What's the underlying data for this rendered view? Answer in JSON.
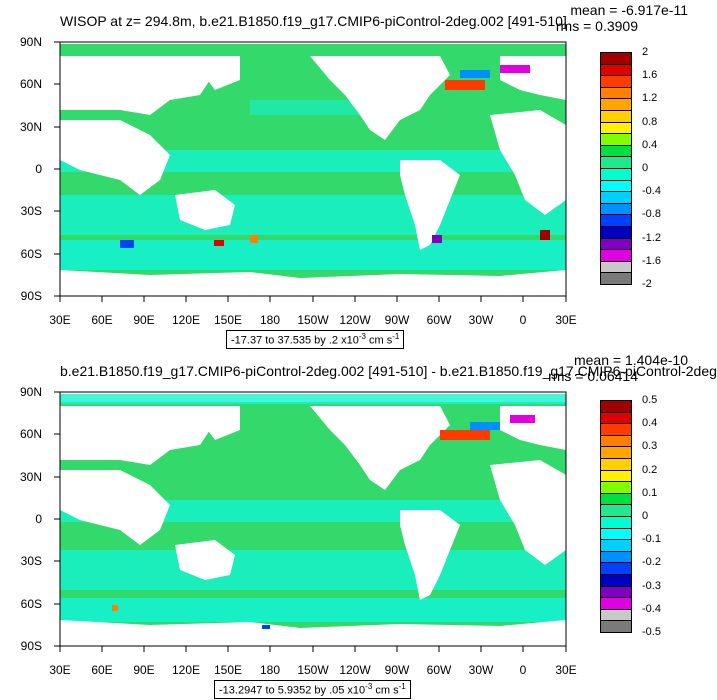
{
  "panels": [
    {
      "title": "WISOP at z= 294.8m, b.e21.B1850.f19_g17.CMIP6-piControl-2deg.002 [491-510]",
      "mean": "mean = -6.917e-11",
      "rms": "rms = 0.3909",
      "range_text": "-17.37 to 37.535 by .2 x10",
      "range_exp": "-3",
      "range_unit": " cm s",
      "range_unit_exp": "-1",
      "colorbar_labels": [
        "2",
        "1.6",
        "1.2",
        "0.8",
        "0.4",
        "0",
        "-0.4",
        "-0.8",
        "-1.2",
        "-1.6",
        "-2"
      ]
    },
    {
      "title": "b.e21.B1850.f19_g17.CMIP6-piControl-2deg.002 [491-510] - b.e21.B1850.f19_g17.CMIP6-piControl-2deg",
      "mean": "mean = 1.404e-10",
      "rms": "rms = 0.06414",
      "range_text": "-13.2947 to 5.9352 by .05 x10",
      "range_exp": "-3",
      "range_unit": " cm s",
      "range_unit_exp": "-1",
      "colorbar_labels": [
        "0.5",
        "0.4",
        "0.3",
        "0.2",
        "0.1",
        "0",
        "-0.1",
        "-0.2",
        "-0.3",
        "-0.4",
        "-0.5"
      ]
    }
  ],
  "lat_labels": [
    "90N",
    "60N",
    "30N",
    "0",
    "30S",
    "60S",
    "90S"
  ],
  "lon_labels": [
    "30E",
    "60E",
    "90E",
    "120E",
    "150E",
    "180",
    "150W",
    "120W",
    "90W",
    "60W",
    "30W",
    "0",
    "30E"
  ],
  "colorbar_colors": [
    "#a00000",
    "#e00000",
    "#ff3b00",
    "#ff7f00",
    "#ffa500",
    "#ffd000",
    "#fff000",
    "#80ff00",
    "#00e040",
    "#20e890",
    "#00ffd0",
    "#00ffff",
    "#00d0ff",
    "#0090ff",
    "#0040ff",
    "#0000c0",
    "#8000c0",
    "#e000e0",
    "#c8c8c8",
    "#7a7a7a"
  ],
  "ocean_colors": {
    "green": "#33d96a",
    "cyan": "#14f2cf",
    "land": "#ffffff"
  }
}
